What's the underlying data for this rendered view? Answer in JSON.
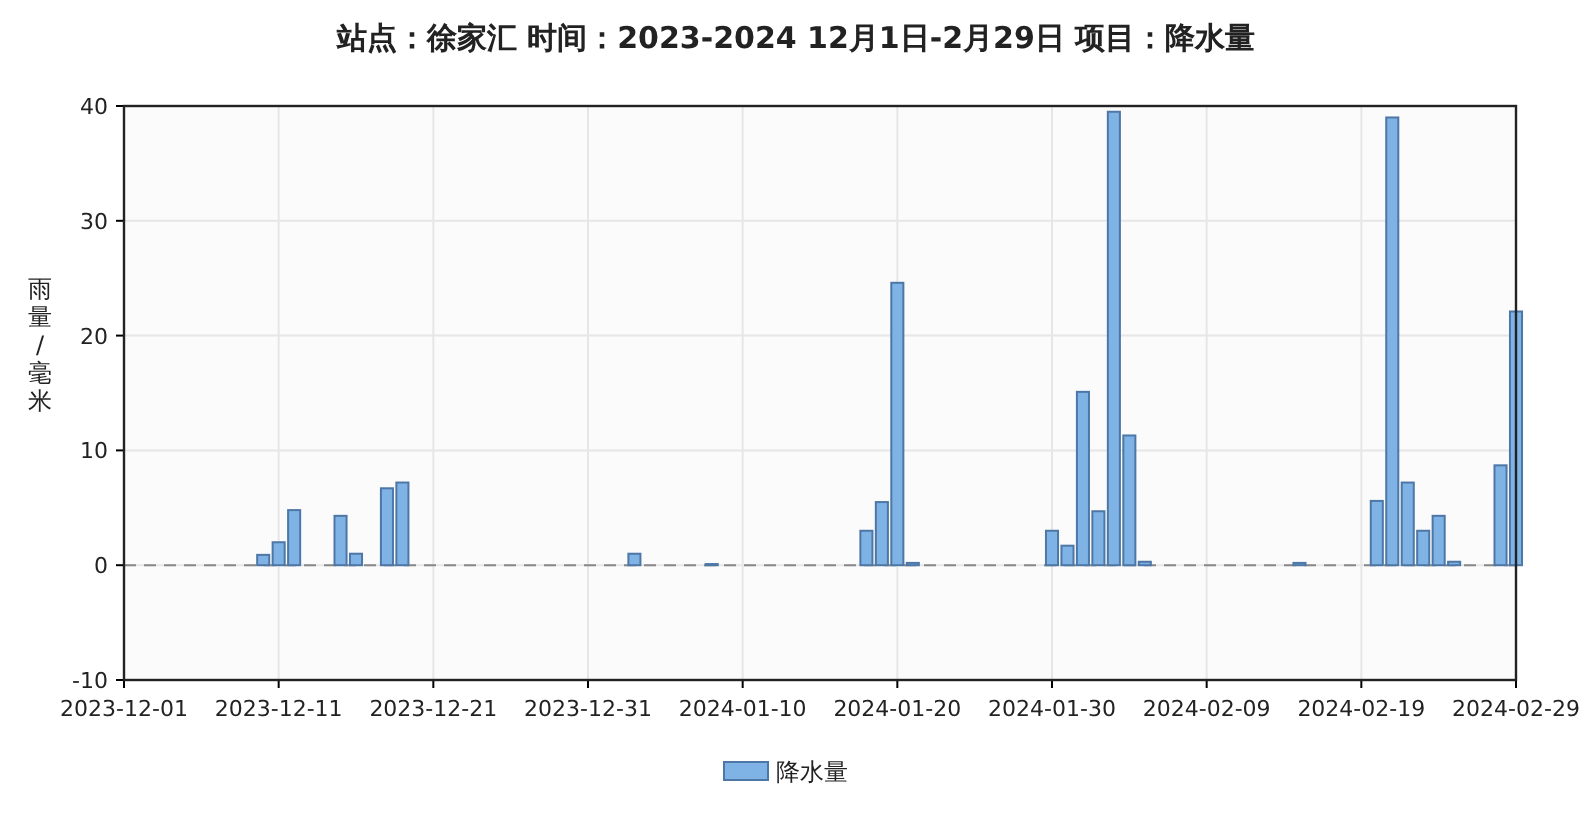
{
  "chart_data": {
    "type": "bar",
    "title": "站点：徐家汇 时间：2023-2024  12月1日-2月29日 项目：降水量",
    "ylabel": "雨量/毫米",
    "x": [
      "2023-12-10",
      "2023-12-11",
      "2023-12-12",
      "2023-12-15",
      "2023-12-16",
      "2023-12-18",
      "2023-12-19",
      "2024-01-03",
      "2024-01-08",
      "2024-01-18",
      "2024-01-19",
      "2024-01-20",
      "2024-01-21",
      "2024-01-30",
      "2024-01-31",
      "2024-02-01",
      "2024-02-02",
      "2024-02-03",
      "2024-02-04",
      "2024-02-05",
      "2024-02-15",
      "2024-02-20",
      "2024-02-21",
      "2024-02-22",
      "2024-02-23",
      "2024-02-24",
      "2024-02-25",
      "2024-02-28",
      "2024-02-29"
    ],
    "series": [
      {
        "name": "降水量",
        "color": "#7fb2e5",
        "values": [
          0.9,
          2.0,
          4.8,
          4.3,
          1.0,
          6.7,
          7.2,
          1.0,
          0.1,
          3.0,
          5.5,
          24.6,
          0.2,
          3.0,
          1.7,
          15.1,
          4.7,
          39.5,
          11.3,
          0.3,
          0.2,
          5.6,
          39.0,
          7.2,
          3.0,
          4.3,
          0.3,
          8.7,
          22.1
        ]
      }
    ],
    "xlim": [
      "2023-12-01",
      "2024-02-29"
    ],
    "xticks": [
      "2023-12-01",
      "2023-12-11",
      "2023-12-21",
      "2023-12-31",
      "2024-01-10",
      "2024-01-20",
      "2024-01-30",
      "2024-02-09",
      "2024-02-19",
      "2024-02-29"
    ],
    "ylim": [
      -10,
      40
    ],
    "yticks": [
      -10,
      0,
      10,
      20,
      30,
      40
    ],
    "ref_lines": [
      {
        "axis": "y",
        "value": 0,
        "color": "#888888",
        "line_style": "dashed"
      }
    ],
    "grid": true,
    "legend": "bottom"
  }
}
